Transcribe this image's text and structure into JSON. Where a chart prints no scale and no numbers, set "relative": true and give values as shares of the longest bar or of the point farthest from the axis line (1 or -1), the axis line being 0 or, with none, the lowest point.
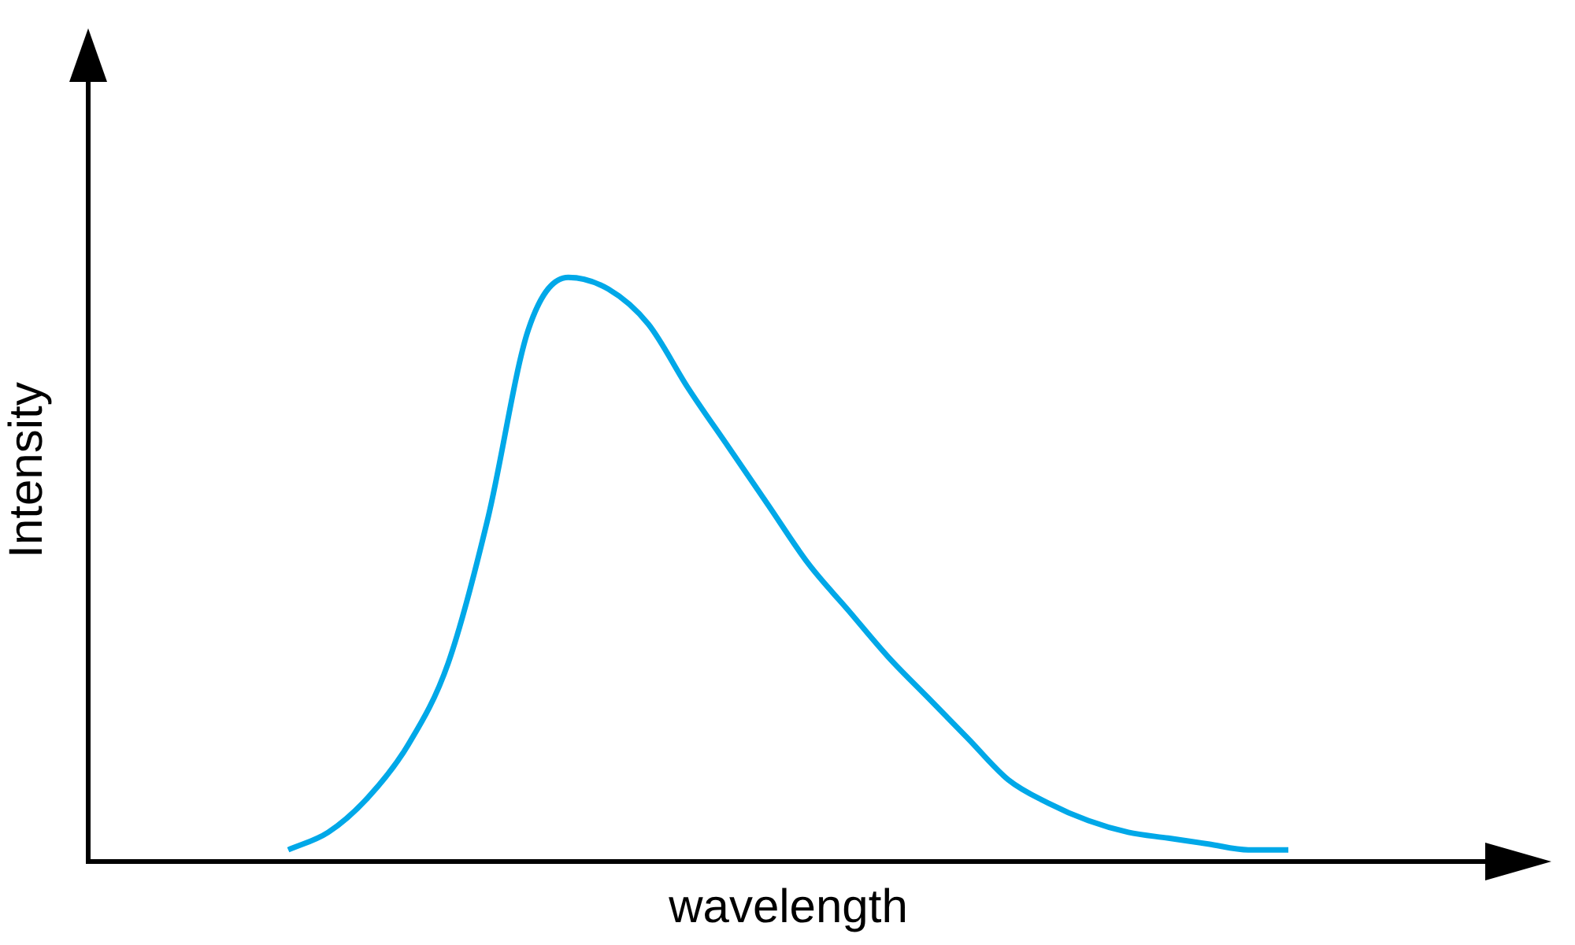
{
  "chart_data": {
    "type": "line",
    "xlabel": "wavelength",
    "ylabel": "Intensity",
    "relative": true,
    "legend": false,
    "grid": false,
    "categories": [
      null,
      null,
      null,
      null,
      null,
      null,
      null,
      null,
      null,
      null,
      null,
      null,
      null,
      null,
      null,
      null,
      null,
      null,
      null,
      null,
      null,
      null,
      null,
      null,
      null,
      null,
      null,
      null,
      null,
      null,
      null,
      null,
      null,
      null,
      null,
      null
    ],
    "series": [
      {
        "color": "#00a8e8",
        "values": [
          null,
          null,
          null,
          null,
          null,
          0.02,
          0.05,
          0.11,
          0.2,
          0.34,
          0.59,
          0.91,
          1.0,
          0.98,
          0.92,
          0.81,
          0.71,
          0.61,
          0.51,
          0.43,
          0.35,
          0.28,
          0.21,
          0.14,
          0.1,
          0.07,
          0.05,
          0.04,
          0.03,
          0.02,
          0.02,
          null,
          null,
          null,
          null,
          null
        ]
      }
    ]
  }
}
